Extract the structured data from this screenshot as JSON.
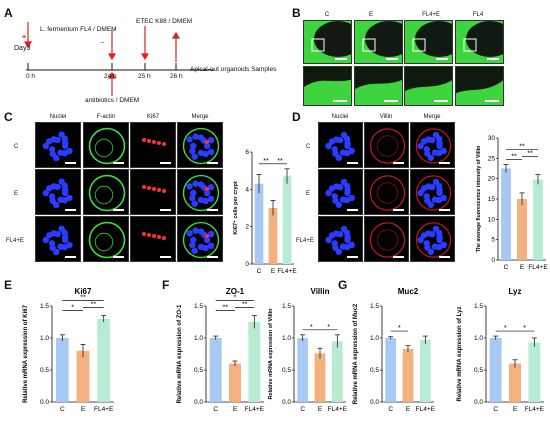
{
  "panels": {
    "A": "A",
    "B": "B",
    "C": "C",
    "D": "D",
    "E": "E",
    "F": "F",
    "G": "G"
  },
  "timeline": {
    "day": "Day3",
    "t0": "0 h",
    "t24": "24 h",
    "t25": "25 h",
    "t26": "26 h",
    "ferm": "L. fermentum FL4 / DMEM",
    "etec": "ETEC K88 / DMEM",
    "anti": "antibiotics / DMEM",
    "samples": "Apical-out organoids Samples",
    "plus": "+",
    "minus": "−"
  },
  "groups": {
    "C": "C",
    "E": "E",
    "FL4E": "FL4+E",
    "FL4": "FL4"
  },
  "panelC": {
    "nuclei": "Nuclei",
    "factin": "F-actin",
    "ki67": "Ki67",
    "merge": "Merge"
  },
  "panelD": {
    "nuclei": "Nuclei",
    "villin": "Villin",
    "merge": "Merge"
  },
  "sig": {
    "s1": "*",
    "s2": "**"
  },
  "colors": {
    "C": "#a9c9f5",
    "E": "#f5b080",
    "FL4E": "#b8ecd2",
    "bg_green": "#3dd43d"
  },
  "chart_data": [
    {
      "id": "C-bar",
      "type": "bar",
      "ylabel": "Ki67⁺ cells per crypt",
      "categories": [
        "C",
        "E",
        "FL4+E"
      ],
      "values": [
        4.3,
        3.0,
        4.7
      ],
      "errors": [
        0.5,
        0.4,
        0.4
      ],
      "ylim": [
        0,
        6
      ],
      "yticks": [
        0,
        2,
        4,
        6
      ],
      "sig": [
        {
          "a": 0,
          "b": 1,
          "t": "**"
        },
        {
          "a": 1,
          "b": 2,
          "t": "**"
        }
      ]
    },
    {
      "id": "D-bar",
      "type": "bar",
      "ylabel": "The average fluorescence intensity of Villin",
      "categories": [
        "C",
        "E",
        "FL4+E"
      ],
      "values": [
        22.5,
        15.0,
        19.8
      ],
      "errors": [
        1.0,
        1.5,
        1.2
      ],
      "ylim": [
        0,
        30
      ],
      "yticks": [
        0,
        5,
        10,
        15,
        20,
        25,
        30
      ],
      "sig": [
        {
          "a": 0,
          "b": 1,
          "t": "**"
        },
        {
          "a": 1,
          "b": 2,
          "t": "**"
        },
        {
          "a": 0,
          "b": 2,
          "t": "**"
        }
      ]
    },
    {
      "id": "E-Ki67",
      "type": "bar",
      "title": "Ki67",
      "ylabel": "Relative mRNA expression of Ki67",
      "categories": [
        "C",
        "E",
        "FL4+E"
      ],
      "values": [
        1.0,
        0.8,
        1.3
      ],
      "errors": [
        0.05,
        0.1,
        0.05
      ],
      "ylim": [
        0,
        1.5
      ],
      "yticks": [
        0.0,
        0.5,
        1.0,
        1.5
      ],
      "sig": [
        {
          "a": 0,
          "b": 1,
          "t": "*"
        },
        {
          "a": 1,
          "b": 2,
          "t": "**"
        },
        {
          "a": 0,
          "b": 2,
          "t": "**"
        }
      ]
    },
    {
      "id": "F-ZO1",
      "type": "bar",
      "title": "ZO-1",
      "ylabel": "Relative mRNA expression of ZO-1",
      "categories": [
        "C",
        "E",
        "FL4+E"
      ],
      "values": [
        1.0,
        0.6,
        1.25
      ],
      "errors": [
        0.03,
        0.04,
        0.1
      ],
      "ylim": [
        0,
        1.5
      ],
      "yticks": [
        0.0,
        0.5,
        1.0,
        1.5
      ],
      "sig": [
        {
          "a": 0,
          "b": 1,
          "t": "**"
        },
        {
          "a": 1,
          "b": 2,
          "t": "**"
        },
        {
          "a": 0,
          "b": 2,
          "t": "*"
        }
      ]
    },
    {
      "id": "F-Villin",
      "type": "bar",
      "title": "Villin",
      "ylabel": "Relative mRNA expression of Villin",
      "categories": [
        "C",
        "E",
        "FL4+E"
      ],
      "values": [
        1.0,
        0.76,
        0.95
      ],
      "errors": [
        0.05,
        0.08,
        0.1
      ],
      "ylim": [
        0,
        1.5
      ],
      "yticks": [
        0.0,
        0.5,
        1.0,
        1.5
      ],
      "sig": [
        {
          "a": 0,
          "b": 1,
          "t": "*"
        },
        {
          "a": 1,
          "b": 2,
          "t": "*"
        }
      ]
    },
    {
      "id": "G-Muc2",
      "type": "bar",
      "title": "Muc2",
      "ylabel": "Relative mRNA expression of Muc2",
      "categories": [
        "C",
        "E",
        "FL4+E"
      ],
      "values": [
        1.0,
        0.83,
        0.97
      ],
      "errors": [
        0.02,
        0.05,
        0.06
      ],
      "ylim": [
        0,
        1.5
      ],
      "yticks": [
        0.0,
        0.5,
        1.0,
        1.5
      ],
      "sig": [
        {
          "a": 0,
          "b": 1,
          "t": "*"
        }
      ]
    },
    {
      "id": "G-Lyz",
      "type": "bar",
      "title": "Lyz",
      "ylabel": "Relative mRNA expression of Lyz",
      "categories": [
        "C",
        "E",
        "FL4+E"
      ],
      "values": [
        1.0,
        0.6,
        0.93
      ],
      "errors": [
        0.03,
        0.06,
        0.07
      ],
      "ylim": [
        0,
        1.5
      ],
      "yticks": [
        0.0,
        0.5,
        1.0,
        1.5
      ],
      "sig": [
        {
          "a": 0,
          "b": 1,
          "t": "*"
        },
        {
          "a": 1,
          "b": 2,
          "t": "*"
        }
      ]
    }
  ]
}
